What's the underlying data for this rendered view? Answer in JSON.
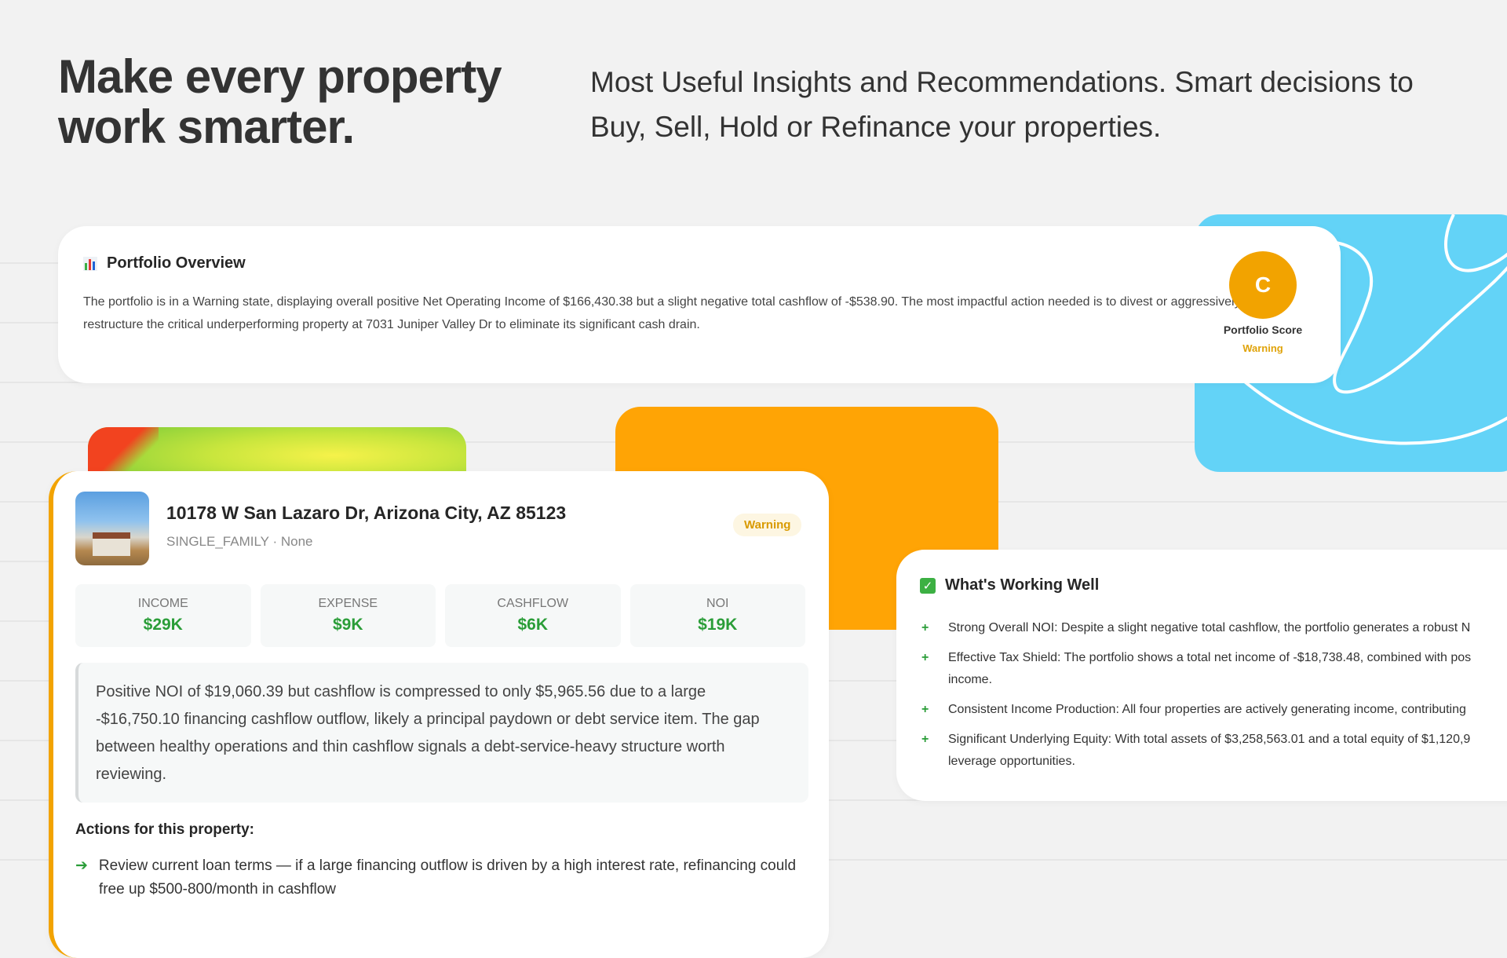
{
  "hero": {
    "headline_line1": "Make every property",
    "headline_line2": "work smarter.",
    "subhead": "Most Useful Insights and Recommendations. Smart decisions to Buy, Sell, Hold or Refinance your properties."
  },
  "overview": {
    "title": "Portfolio Overview",
    "icon": "bar-chart-icon",
    "text": "The portfolio is in a Warning state, displaying overall positive Net Operating Income of $166,430.38 but a slight negative total cashflow of -$538.90. The most impactful action needed is to divest or aggressively restructure the critical underperforming property at 7031 Juniper Valley Dr to eliminate its significant cash drain.",
    "score_grade": "C",
    "score_label": "Portfolio Score",
    "score_status": "Warning"
  },
  "property": {
    "address": "10178 W San Lazaro Dr, Arizona City, AZ 85123",
    "type": "SINGLE_FAMILY",
    "meta_extra": "· None",
    "status": "Warning",
    "metrics": [
      {
        "label": "INCOME",
        "value": "$29K"
      },
      {
        "label": "EXPENSE",
        "value": "$9K"
      },
      {
        "label": "CASHFLOW",
        "value": "$6K"
      },
      {
        "label": "NOI",
        "value": "$19K"
      }
    ],
    "analysis": "Positive NOI of $19,060.39 but cashflow is compressed to only $5,965.56 due to a large -$16,750.10 financing cashflow outflow, likely a principal paydown or debt service item. The gap between healthy operations and thin cashflow signals a debt-service-heavy structure worth reviewing.",
    "actions_title": "Actions for this property:",
    "actions": [
      "Review current loan terms — if a large financing outflow is driven by a high interest rate, refinancing could free up $500-800/month in cashflow"
    ]
  },
  "working_well": {
    "title": "What's Working Well",
    "items": [
      {
        "line1": "Strong Overall NOI: Despite a slight negative total cashflow, the portfolio generates a robust N",
        "line2": ""
      },
      {
        "line1": "Effective Tax Shield: The portfolio shows a total net income of -$18,738.48, combined with pos",
        "line2": "income."
      },
      {
        "line1": "Consistent Income Production: All four properties are actively generating income, contributing",
        "line2": ""
      },
      {
        "line1": "Significant Underlying Equity: With total assets of $3,258,563.01 and a total equity of $1,120,9",
        "line2": "leverage opportunities."
      }
    ]
  },
  "colors": {
    "accent_orange": "#f2a300",
    "positive_green": "#2a9d38",
    "deco_blue": "#63d3f7",
    "deco_orange": "#ffa405"
  }
}
